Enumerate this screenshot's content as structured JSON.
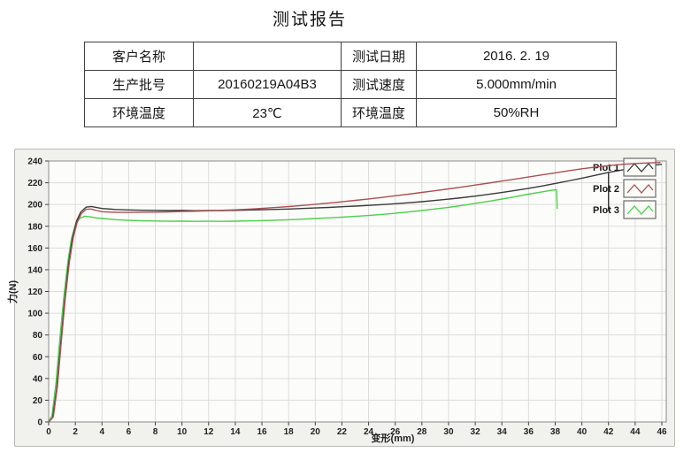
{
  "title": "测试报告",
  "info_table": {
    "rows": [
      {
        "c1_label": "客户名称",
        "c2_value": "",
        "c3_label": "测试日期",
        "c4_value": "2016. 2. 19"
      },
      {
        "c1_label": "生产批号",
        "c2_value": "20160219A04B3",
        "c3_label": "测试速度",
        "c4_value": "5.000mm/min"
      },
      {
        "c1_label": "环境温度",
        "c2_value": "23℃",
        "c3_label": "环境温度",
        "c4_value": "50%RH"
      }
    ]
  },
  "chart_data": {
    "type": "line",
    "title": "",
    "xlabel": "变形(mm)",
    "ylabel": "力(N)",
    "xlim": [
      0,
      46
    ],
    "ylim": [
      0,
      240
    ],
    "x_ticks": [
      0,
      2,
      4,
      6,
      8,
      10,
      12,
      14,
      16,
      18,
      20,
      22,
      24,
      26,
      28,
      30,
      32,
      34,
      36,
      38,
      40,
      42,
      44,
      46
    ],
    "y_ticks": [
      0,
      20,
      40,
      60,
      80,
      100,
      120,
      140,
      160,
      180,
      200,
      220,
      240
    ],
    "grid": true,
    "legend_position": "top-right",
    "style": {
      "panel_bg": "#f1f1ee",
      "plot_bg": "#fcfcfa",
      "grid_color": "#dcdcda",
      "frame_color": "#8a8a8a",
      "tick_color": "#444444",
      "tick_label_color": "#222222",
      "legend_box_fill": "#fbfbf8",
      "legend_box_border": "#6a6a6a",
      "marker_line_color": "#333333"
    },
    "marker_line": {
      "x": 42,
      "y_from": 194,
      "y_to": 229.5
    },
    "series": [
      {
        "name": "Plot 1",
        "color": "#3a3a3a",
        "points": [
          [
            0,
            0
          ],
          [
            0.3,
            4
          ],
          [
            0.6,
            30
          ],
          [
            0.9,
            72
          ],
          [
            1.2,
            112
          ],
          [
            1.5,
            146
          ],
          [
            1.8,
            170
          ],
          [
            2.1,
            185
          ],
          [
            2.4,
            193
          ],
          [
            2.8,
            197.5
          ],
          [
            3.2,
            198.2
          ],
          [
            3.6,
            197.2
          ],
          [
            4,
            196.3
          ],
          [
            5,
            195.4
          ],
          [
            6,
            195
          ],
          [
            7,
            194.7
          ],
          [
            8,
            194.6
          ],
          [
            9,
            194.4
          ],
          [
            10,
            194.6
          ],
          [
            11,
            194.3
          ],
          [
            12,
            194.5
          ],
          [
            13,
            194.4
          ],
          [
            14,
            194.6
          ],
          [
            15,
            194.9
          ],
          [
            16,
            195.2
          ],
          [
            17,
            195.5
          ],
          [
            18,
            195.8
          ],
          [
            19,
            196.3
          ],
          [
            20,
            196.8
          ],
          [
            21,
            197.3
          ],
          [
            22,
            197.9
          ],
          [
            23,
            198.5
          ],
          [
            24,
            199.2
          ],
          [
            25,
            199.9
          ],
          [
            26,
            200.7
          ],
          [
            27,
            201.6
          ],
          [
            28,
            202.6
          ],
          [
            29,
            203.7
          ],
          [
            30,
            204.9
          ],
          [
            31,
            206.2
          ],
          [
            32,
            207.7
          ],
          [
            33,
            209.3
          ],
          [
            34,
            211
          ],
          [
            35,
            212.9
          ],
          [
            36,
            214.9
          ],
          [
            37,
            217
          ],
          [
            38,
            219.3
          ],
          [
            39,
            221.7
          ],
          [
            40,
            224.2
          ],
          [
            41,
            226.8
          ],
          [
            42,
            229.5
          ],
          [
            43,
            231.7
          ],
          [
            44,
            233.8
          ],
          [
            45,
            235.5
          ],
          [
            46,
            237
          ]
        ]
      },
      {
        "name": "Plot 2",
        "color": "#ac5053",
        "points": [
          [
            0,
            0
          ],
          [
            0.35,
            5
          ],
          [
            0.65,
            32
          ],
          [
            0.95,
            74
          ],
          [
            1.25,
            114
          ],
          [
            1.55,
            147
          ],
          [
            1.85,
            170
          ],
          [
            2.15,
            184
          ],
          [
            2.45,
            191.5
          ],
          [
            2.8,
            195.6
          ],
          [
            3.2,
            195.8
          ],
          [
            3.6,
            194.4
          ],
          [
            4,
            193.4
          ],
          [
            5,
            192.8
          ],
          [
            6,
            192.7
          ],
          [
            7,
            192.9
          ],
          [
            8,
            193
          ],
          [
            9,
            193.2
          ],
          [
            10,
            193.6
          ],
          [
            11,
            193.8
          ],
          [
            12,
            194.2
          ],
          [
            13,
            194.7
          ],
          [
            14,
            195.1
          ],
          [
            15,
            195.7
          ],
          [
            16,
            196.4
          ],
          [
            17,
            197.2
          ],
          [
            18,
            198.1
          ],
          [
            19,
            199.1
          ],
          [
            20,
            200.2
          ],
          [
            21,
            201.3
          ],
          [
            22,
            202.5
          ],
          [
            23,
            203.8
          ],
          [
            24,
            205.1
          ],
          [
            25,
            206.5
          ],
          [
            26,
            208
          ],
          [
            27,
            209.5
          ],
          [
            28,
            211.1
          ],
          [
            29,
            212.7
          ],
          [
            30,
            214.4
          ],
          [
            31,
            216.1
          ],
          [
            32,
            217.9
          ],
          [
            33,
            219.7
          ],
          [
            34,
            221.5
          ],
          [
            35,
            223.4
          ],
          [
            36,
            225.3
          ],
          [
            37,
            227.2
          ],
          [
            38,
            229.1
          ],
          [
            39,
            231
          ],
          [
            40,
            232.8
          ],
          [
            41,
            234.4
          ],
          [
            42,
            235.8
          ],
          [
            43,
            236.9
          ],
          [
            44,
            237.7
          ],
          [
            45,
            238.2
          ],
          [
            45.9,
            238.6
          ]
        ]
      },
      {
        "name": "Plot 3",
        "color": "#4bd04b",
        "points": [
          [
            0,
            0
          ],
          [
            0.25,
            6
          ],
          [
            0.55,
            36
          ],
          [
            0.85,
            78
          ],
          [
            1.15,
            116
          ],
          [
            1.45,
            148
          ],
          [
            1.7,
            168
          ],
          [
            2,
            181
          ],
          [
            2.3,
            187
          ],
          [
            2.7,
            189.2
          ],
          [
            3.1,
            188.7
          ],
          [
            3.5,
            187.8
          ],
          [
            4,
            187.1
          ],
          [
            5,
            186.1
          ],
          [
            6,
            185.4
          ],
          [
            7,
            185
          ],
          [
            8,
            184.8
          ],
          [
            9,
            184.6
          ],
          [
            10,
            184.7
          ],
          [
            11,
            184.5
          ],
          [
            12,
            184.6
          ],
          [
            13,
            184.5
          ],
          [
            14,
            184.7
          ],
          [
            15,
            184.9
          ],
          [
            16,
            185.2
          ],
          [
            17,
            185.6
          ],
          [
            18,
            186
          ],
          [
            19,
            186.5
          ],
          [
            20,
            187.1
          ],
          [
            21,
            187.7
          ],
          [
            22,
            188.3
          ],
          [
            23,
            189.1
          ],
          [
            24,
            189.9
          ],
          [
            25,
            190.9
          ],
          [
            26,
            191.9
          ],
          [
            27,
            193.1
          ],
          [
            28,
            194.4
          ],
          [
            29,
            195.9
          ],
          [
            30,
            197.4
          ],
          [
            31,
            199.1
          ],
          [
            32,
            201
          ],
          [
            33,
            202.9
          ],
          [
            34,
            205
          ],
          [
            35,
            207.2
          ],
          [
            36,
            209.5
          ],
          [
            37,
            211.6
          ],
          [
            37.8,
            213.2
          ],
          [
            38.1,
            213.6
          ],
          [
            38.15,
            196
          ]
        ]
      }
    ]
  }
}
